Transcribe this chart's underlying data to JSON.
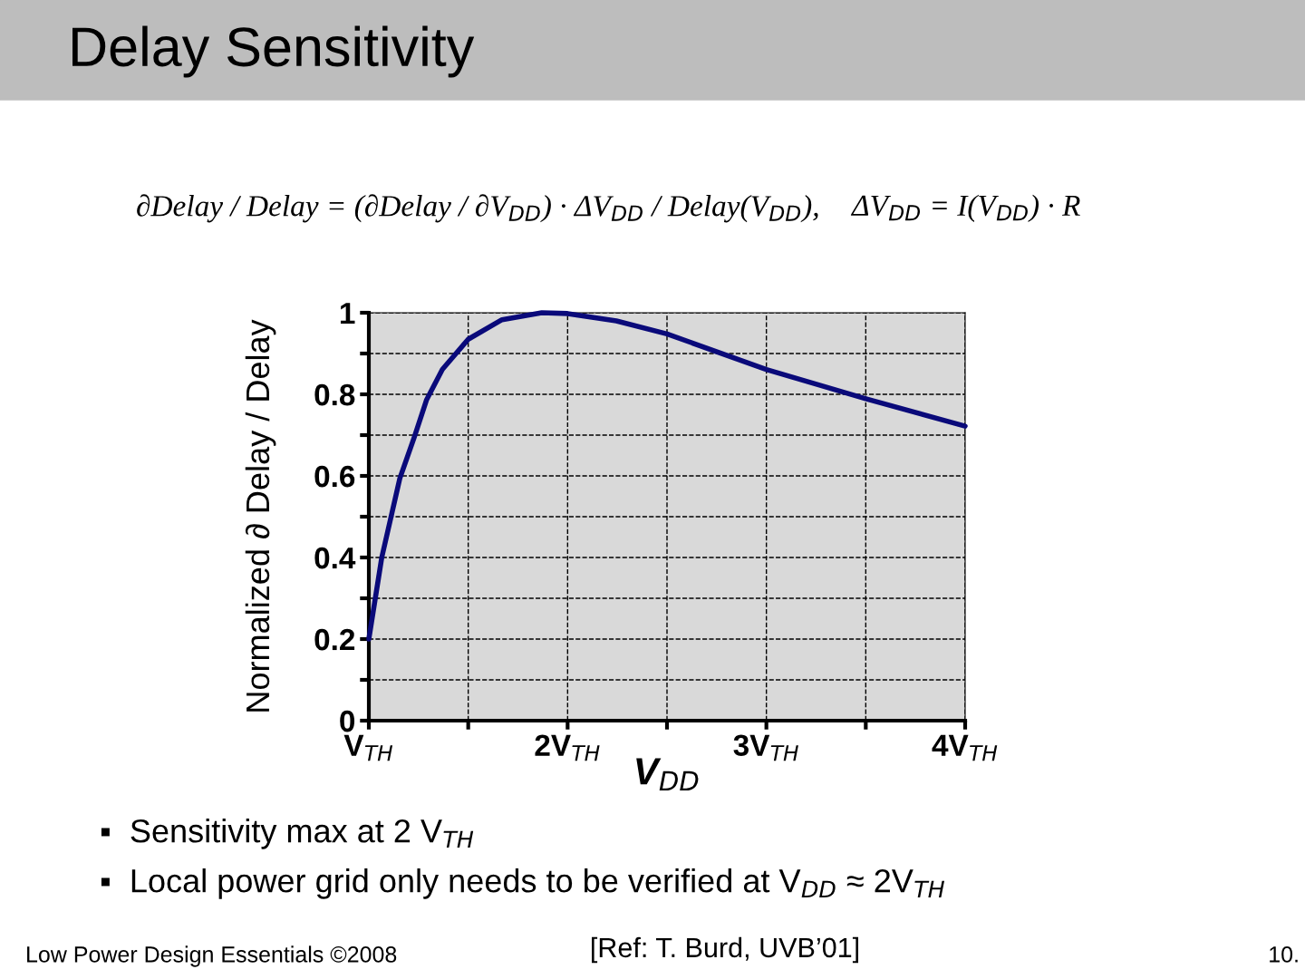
{
  "chart_data": {
    "type": "line",
    "title": "Delay Sensitivity",
    "xlabel": "V$_{DD}$",
    "ylabel": "Normalized ∂ Delay / Delay",
    "x": [
      1.0,
      1.065,
      1.156,
      1.23,
      1.29,
      1.37,
      1.5,
      1.67,
      1.87,
      2.0,
      2.245,
      2.5,
      3.0,
      3.5,
      4.0
    ],
    "series": [
      {
        "color": "#0a0a7a",
        "values": [
          0.2,
          0.4,
          0.594,
          0.697,
          0.786,
          0.861,
          0.935,
          0.983,
          1.0,
          0.998,
          0.98,
          0.948,
          0.861,
          0.789,
          0.722
        ]
      }
    ],
    "xlim": [
      1,
      4
    ],
    "xticks": [
      {
        "value": 1,
        "label": "V$_{TH}$"
      },
      {
        "value": 1.5,
        "label": null
      },
      {
        "value": 2,
        "label": "2V$_{TH}$"
      },
      {
        "value": 2.5,
        "label": null
      },
      {
        "value": 3,
        "label": "3V$_{TH}$"
      },
      {
        "value": 3.5,
        "label": null
      },
      {
        "value": 4,
        "label": "4V$_{TH}$"
      }
    ],
    "ylim": [
      0,
      1
    ],
    "yticks": [
      0,
      {
        "value": 0.1,
        "label": null
      },
      0.2,
      {
        "value": 0.3,
        "label": null
      },
      0.4,
      {
        "value": 0.5,
        "label": null
      },
      0.6,
      {
        "value": 0.7,
        "label": null
      },
      0.8,
      {
        "value": 0.9,
        "label": null
      },
      1
    ],
    "grid": true,
    "marker": "none",
    "line_style": "solid",
    "legend": false,
    "annotations": [
      "∂Delay / Delay = (∂Delay / ∂V$_{DD}$) · ΔV$_{DD}$ / Delay(V$_{DD}$),",
      "ΔV$_{DD}$ = I(V$_{DD}$) · R",
      "▪  Sensitivity max at 2 V$_{TH}$",
      "▪  Local power grid only needs to be verified at V$_{DD}$ ≈ 2V$_{TH}$",
      "Low Power Design Essentials ©2008",
      "[Ref: T. Burd, UVB’01]",
      "10."
    ]
  }
}
